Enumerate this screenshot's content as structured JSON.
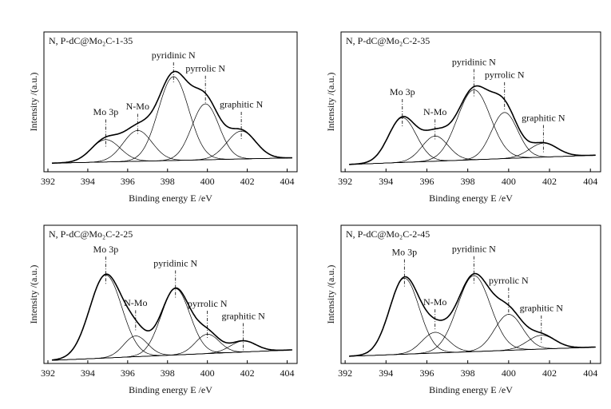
{
  "chart_data": [
    {
      "type": "xps",
      "title": "N, P-dC@Mo₂C-1-35",
      "xlabel": "Binding energy  E /eV",
      "ylabel": "Intensity /(a.u.)",
      "xlim": [
        391.8,
        404.5
      ],
      "xticks": [
        392,
        394,
        396,
        398,
        400,
        402,
        404
      ],
      "ylim": [
        0,
        1
      ],
      "baseline": [
        0.06,
        0.1
      ],
      "peaks": [
        {
          "name": "Mo 3p",
          "center": 394.9,
          "height": 0.16,
          "fwhm": 1.7
        },
        {
          "name": "N-Mo",
          "center": 396.5,
          "height": 0.22,
          "fwhm": 1.7
        },
        {
          "name": "pyridinic N",
          "center": 398.3,
          "height": 0.6,
          "fwhm": 1.8
        },
        {
          "name": "pyrrolic N",
          "center": 399.9,
          "height": 0.4,
          "fwhm": 1.6
        },
        {
          "name": "graphitic N",
          "center": 401.7,
          "height": 0.2,
          "fwhm": 1.7
        }
      ]
    },
    {
      "type": "xps",
      "title": "N, P-dC@Mo₂C-2-35",
      "xlabel": "Binding energy  E /eV",
      "ylabel": "Intensity /(a.u.)",
      "xlim": [
        391.8,
        404.5
      ],
      "xticks": [
        392,
        394,
        396,
        398,
        400,
        402,
        404
      ],
      "ylim": [
        0,
        1
      ],
      "baseline": [
        0.05,
        0.12
      ],
      "peaks": [
        {
          "name": "Mo 3p",
          "center": 394.8,
          "height": 0.32,
          "fwhm": 1.6
        },
        {
          "name": "N-Mo",
          "center": 396.4,
          "height": 0.18,
          "fwhm": 1.5
        },
        {
          "name": "pyridinic N",
          "center": 398.3,
          "height": 0.5,
          "fwhm": 1.9
        },
        {
          "name": "pyrrolic N",
          "center": 399.8,
          "height": 0.33,
          "fwhm": 1.5
        },
        {
          "name": "graphitic N",
          "center": 401.7,
          "height": 0.1,
          "fwhm": 1.6
        }
      ]
    },
    {
      "type": "xps",
      "title": "N, P-dC@Mo₂C-2-25",
      "xlabel": "Binding energy  E /eV",
      "ylabel": "Intensity /(a.u.)",
      "xlim": [
        391.8,
        404.5
      ],
      "xticks": [
        392,
        394,
        396,
        398,
        400,
        402,
        404
      ],
      "ylim": [
        0,
        1
      ],
      "baseline": [
        0.02,
        0.1
      ],
      "peaks": [
        {
          "name": "Mo 3p",
          "center": 394.9,
          "height": 0.6,
          "fwhm": 1.9
        },
        {
          "name": "N-Mo",
          "center": 396.4,
          "height": 0.15,
          "fwhm": 1.4
        },
        {
          "name": "pyridinic N",
          "center": 398.4,
          "height": 0.48,
          "fwhm": 1.7
        },
        {
          "name": "pyrrolic N",
          "center": 400,
          "height": 0.14,
          "fwhm": 1.4
        },
        {
          "name": "graphitic N",
          "center": 401.8,
          "height": 0.08,
          "fwhm": 1.5
        }
      ]
    },
    {
      "type": "xps",
      "title": "N, P-dC@Mo₂C-2-45",
      "xlabel": "Binding energy  E /eV",
      "ylabel": "Intensity /(a.u.)",
      "xlim": [
        391.8,
        404.5
      ],
      "xticks": [
        392,
        394,
        396,
        398,
        400,
        402,
        404
      ],
      "ylim": [
        0,
        1
      ],
      "baseline": [
        0.05,
        0.12
      ],
      "peaks": [
        {
          "name": "Mo 3p",
          "center": 394.9,
          "height": 0.55,
          "fwhm": 1.7
        },
        {
          "name": "N-Mo",
          "center": 396.4,
          "height": 0.15,
          "fwhm": 1.5
        },
        {
          "name": "pyridinic N",
          "center": 398.3,
          "height": 0.55,
          "fwhm": 1.9
        },
        {
          "name": "pyrrolic N",
          "center": 400,
          "height": 0.26,
          "fwhm": 1.6
        },
        {
          "name": "graphitic N",
          "center": 401.6,
          "height": 0.1,
          "fwhm": 1.6
        }
      ]
    }
  ]
}
